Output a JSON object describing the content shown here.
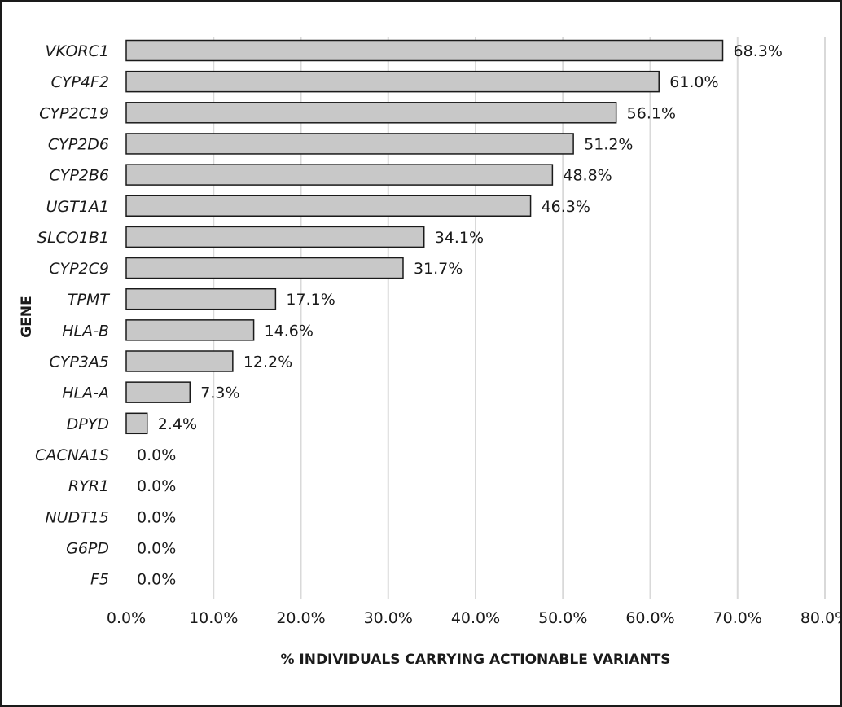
{
  "chart_data": {
    "type": "bar",
    "orientation": "horizontal",
    "categories": [
      "VKORC1",
      "CYP4F2",
      "CYP2C19",
      "CYP2D6",
      "CYP2B6",
      "UGT1A1",
      "SLCO1B1",
      "CYP2C9",
      "TPMT",
      "HLA-B",
      "CYP3A5",
      "HLA-A",
      "DPYD",
      "CACNA1S",
      "RYR1",
      "NUDT15",
      "G6PD",
      "F5"
    ],
    "values": [
      68.3,
      61.0,
      56.1,
      51.2,
      48.8,
      46.3,
      34.1,
      31.7,
      17.1,
      14.6,
      12.2,
      7.3,
      2.4,
      0.0,
      0.0,
      0.0,
      0.0,
      0.0
    ],
    "data_labels": [
      "68.3%",
      "61.0%",
      "56.1%",
      "51.2%",
      "48.8%",
      "46.3%",
      "34.1%",
      "31.7%",
      "17.1%",
      "14.6%",
      "12.2%",
      "7.3%",
      "2.4%",
      "0.0%",
      "0.0%",
      "0.0%",
      "0.0%",
      "0.0%"
    ],
    "xlim": [
      0,
      80
    ],
    "x_ticks": [
      0,
      10,
      20,
      30,
      40,
      50,
      60,
      70,
      80
    ],
    "x_tick_labels": [
      "0.0%",
      "10.0%",
      "20.0%",
      "30.0%",
      "40.0%",
      "50.0%",
      "60.0%",
      "70.0%",
      "80.0%"
    ],
    "xlabel": "% INDIVIDUALS CARRYING ACTIONABLE VARIANTS",
    "ylabel": "GENE",
    "grid": "vertical",
    "bar_color": "#c8c8c8",
    "bar_edge_color": "#1a1a1a",
    "grid_color": "#d9d9d9"
  }
}
